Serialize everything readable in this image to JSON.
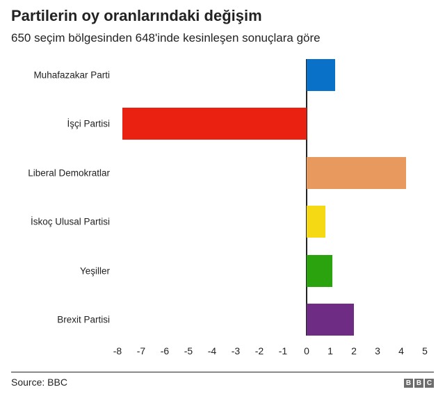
{
  "header": {
    "title": "Partilerin oy oranlarındaki değişim",
    "subtitle": "650 seçim bölgesinden 648'inde kesinleşen sonuçlara göre"
  },
  "footer": {
    "source": "Source: BBC",
    "logo": [
      "B",
      "B",
      "C"
    ]
  },
  "chart_data": {
    "type": "bar",
    "orientation": "horizontal",
    "title": "Partilerin oy oranlarındaki değişim",
    "subtitle": "650 seçim bölgesinden 648'inde kesinleşen sonuçlara göre",
    "categories": [
      "Muhafazakar Parti",
      "İşçi Partisi",
      "Liberal Demokratlar",
      "İskoç Ulusal Partisi",
      "Yeşiller",
      "Brexit Partisi"
    ],
    "values": [
      1.2,
      -7.8,
      4.2,
      0.8,
      1.1,
      2.0
    ],
    "colors": [
      "#0a71c8",
      "#ea2010",
      "#e89a5e",
      "#f5d915",
      "#2aa30f",
      "#6e2c84"
    ],
    "xlabel": "",
    "ylabel": "",
    "xlim": [
      -8,
      5
    ],
    "xticks": [
      "-8",
      "-7",
      "-6",
      "-5",
      "-4",
      "-3",
      "-2",
      "-1",
      "0",
      "1",
      "2",
      "3",
      "4",
      "5"
    ],
    "grid": false,
    "legend": "none",
    "source": "Source: BBC"
  }
}
